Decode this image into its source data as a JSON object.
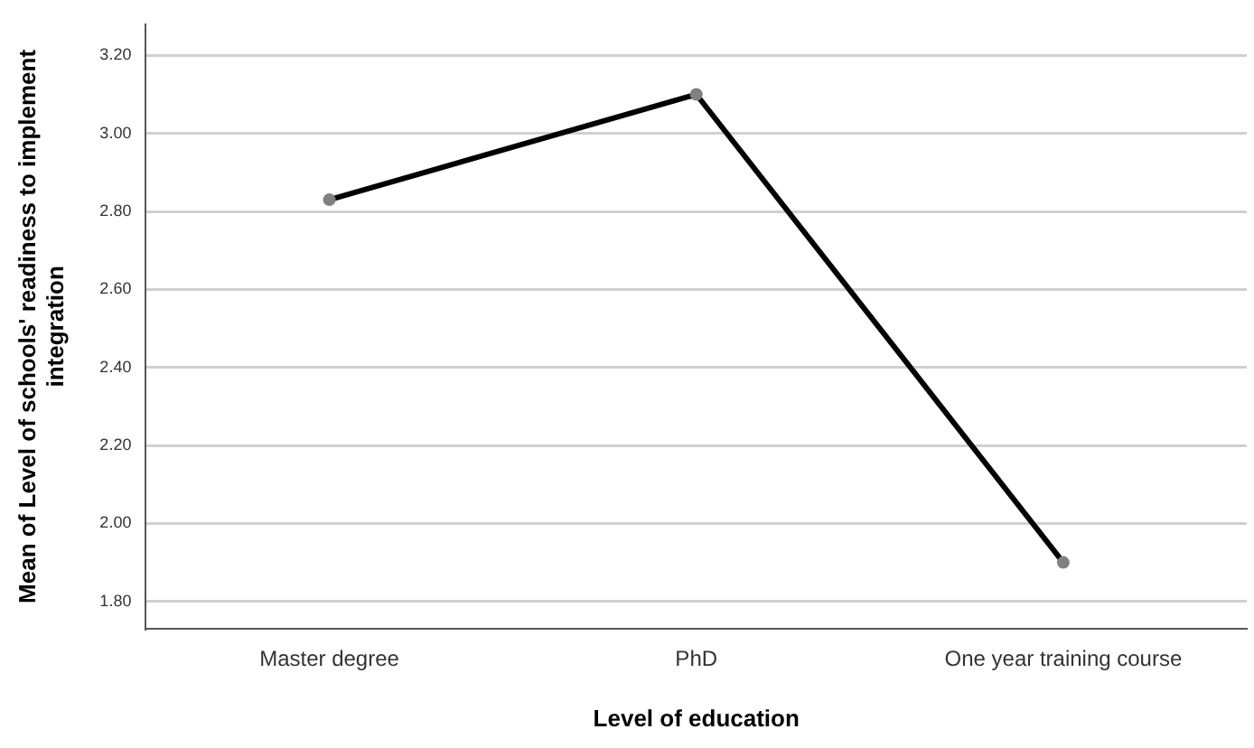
{
  "chart_data": {
    "type": "line",
    "xlabel": "Level of education",
    "ylabel": "Mean of Level of schools' readiness to implement integration",
    "categories": [
      "Master degree",
      "PhD",
      "One year training course"
    ],
    "series": [
      {
        "color": "#000000",
        "values": [
          2.83,
          3.1,
          1.9
        ]
      }
    ],
    "ylim": [
      1.73,
      3.28
    ],
    "yticks": [
      {
        "value": 1.8,
        "label": "1.80"
      },
      {
        "value": 2.0,
        "label": "2.00"
      },
      {
        "value": 2.2,
        "label": "2.20"
      },
      {
        "value": 2.4,
        "label": "2.40"
      },
      {
        "value": 2.6,
        "label": "2.60"
      },
      {
        "value": 2.8,
        "label": "2.80"
      },
      {
        "value": 3.0,
        "label": "3.00"
      },
      {
        "value": 3.2,
        "label": "3.20"
      }
    ],
    "grid": "y",
    "marker": "circle",
    "line_style": "solid",
    "legend": false
  }
}
